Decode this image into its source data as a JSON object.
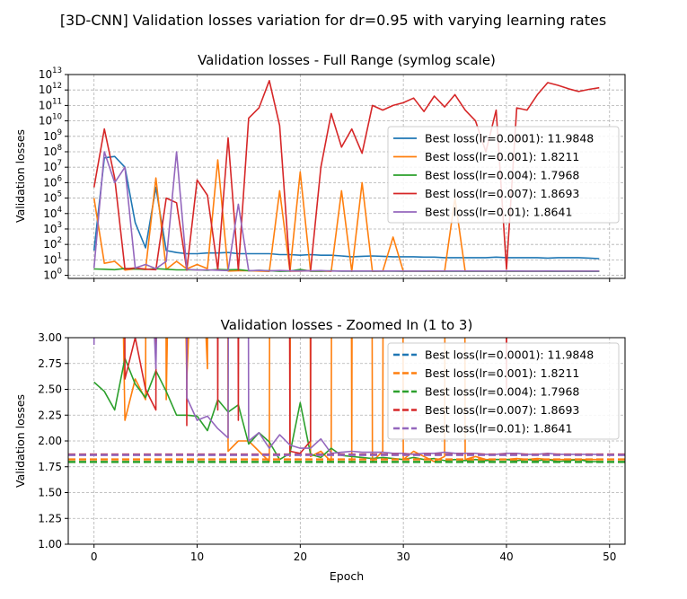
{
  "figure": {
    "suptitle": "[3D-CNN] Validation losses variation for dr=0.95 with varying learning rates"
  },
  "chart_data": [
    {
      "type": "line",
      "title": "Validation losses - Full Range (symlog scale)",
      "xlabel": "",
      "ylabel": "Validation losses",
      "yscale": "symlog",
      "xlim": [
        -2.5,
        51.5
      ],
      "ylim": [
        0.8,
        10000000000000.0
      ],
      "xticks": [
        0,
        10,
        20,
        30,
        40,
        50
      ],
      "yticks": [
        1,
        10,
        100,
        1000,
        10000,
        100000,
        1000000,
        10000000,
        100000000,
        1000000000,
        10000000000,
        100000000000,
        1000000000000,
        10000000000000
      ],
      "ytick_labels": [
        {
          "b": "10",
          "e": "0"
        },
        {
          "b": "10",
          "e": "1"
        },
        {
          "b": "10",
          "e": "2"
        },
        {
          "b": "10",
          "e": "3"
        },
        {
          "b": "10",
          "e": "4"
        },
        {
          "b": "10",
          "e": "5"
        },
        {
          "b": "10",
          "e": "6"
        },
        {
          "b": "10",
          "e": "7"
        },
        {
          "b": "10",
          "e": "8"
        },
        {
          "b": "10",
          "e": "9"
        },
        {
          "b": "10",
          "e": "10"
        },
        {
          "b": "10",
          "e": "11"
        },
        {
          "b": "10",
          "e": "12"
        },
        {
          "b": "10",
          "e": "13"
        }
      ],
      "grid": true,
      "legend": "center-right",
      "x": [
        0,
        1,
        2,
        3,
        4,
        5,
        6,
        7,
        8,
        9,
        10,
        11,
        12,
        13,
        14,
        15,
        16,
        17,
        18,
        19,
        20,
        21,
        22,
        23,
        24,
        25,
        26,
        27,
        28,
        29,
        30,
        31,
        32,
        33,
        34,
        35,
        36,
        37,
        38,
        39,
        40,
        41,
        42,
        43,
        44,
        45,
        46,
        47,
        48,
        49
      ],
      "series": [
        {
          "name": "Best loss(lr=0.0001): 11.9848",
          "color": "#1f77b4",
          "style": "solid",
          "values": [
            40,
            40000000,
            50000000,
            10000000,
            2500,
            60,
            500000,
            40,
            30,
            25,
            25,
            28,
            28,
            30,
            25,
            25,
            25,
            25,
            22,
            22,
            20,
            22,
            20,
            20,
            18,
            16,
            17,
            18,
            17,
            16,
            16,
            16,
            15,
            15,
            14,
            14,
            14,
            14,
            14,
            15,
            14,
            14,
            14,
            14,
            13,
            14,
            14,
            14,
            13,
            12
          ]
        },
        {
          "name": "Best loss(lr=0.001): 1.8211",
          "color": "#ff7f0e",
          "style": "solid",
          "values": [
            100000,
            6,
            8,
            2.2,
            2.6,
            2.4,
            2000000,
            2.4,
            8,
            2.6,
            5,
            2.7,
            30000000,
            1.9,
            2,
            2,
            1.9,
            1.8,
            300000,
            1.85,
            5000000,
            1.85,
            1.9,
            1.8,
            300000,
            1.8,
            1000000,
            1.8,
            1.9,
            300,
            1.82,
            1.9,
            1.85,
            1.8,
            1.85,
            100000,
            1.82,
            1.85,
            1.82,
            1.82,
            1.82,
            1.83,
            1.82,
            1.83,
            1.82,
            1.82,
            1.82,
            1.82,
            1.82,
            1.82
          ]
        },
        {
          "name": "Best loss(lr=0.004): 1.7968",
          "color": "#2ca02c",
          "style": "solid",
          "values": [
            2.57,
            2.48,
            2.3,
            2.8,
            2.55,
            2.42,
            2.68,
            2.48,
            2.25,
            2.25,
            2.24,
            2.1,
            2.4,
            2.28,
            2.35,
            1.97,
            2.08,
            1.99,
            1.82,
            1.88,
            2.37,
            1.87,
            1.84,
            1.93,
            1.86,
            1.85,
            1.84,
            1.83,
            1.84,
            1.83,
            1.82,
            1.84,
            1.82,
            1.83,
            1.81,
            1.82,
            1.81,
            1.82,
            1.81,
            1.82,
            1.82,
            1.81,
            1.82,
            1.81,
            1.82,
            1.8,
            1.81,
            1.82,
            1.8,
            1.8
          ]
        },
        {
          "name": "Best loss(lr=0.007): 1.8693",
          "color": "#d62728",
          "style": "solid",
          "values": [
            500000,
            3000000000,
            2000000,
            2.6,
            3,
            2.5,
            2.3,
            100000,
            50000,
            2.15,
            1500000,
            150000,
            2.3,
            800000000,
            2.2,
            15000000000,
            70000000000,
            4000000000000,
            5000000000,
            1.9,
            1.88,
            2,
            10000000,
            30000000000,
            200000000,
            3000000000,
            80000000,
            100000000000,
            50000000000,
            100000000000,
            150000000000,
            300000000000,
            40000000000,
            400000000000,
            80000000000,
            500000000000,
            50000000000,
            10000000000,
            100000000,
            50000000000,
            2.5,
            70000000000,
            50000000000,
            500000000000,
            3000000000000,
            2000000000000,
            1200000000000,
            800000000000,
            1100000000000,
            1400000000000
          ]
        },
        {
          "name": "Best loss(lr=0.01): 1.8641",
          "color": "#9467bd",
          "style": "solid",
          "values": [
            2.93,
            100000000,
            1000000,
            10000000,
            3,
            5,
            2.7,
            8,
            100000000,
            2.42,
            2.2,
            2.24,
            2.12,
            2.03,
            40000,
            2.0,
            2.08,
            1.93,
            2.06,
            1.96,
            1.93,
            1.93,
            2.02,
            1.88,
            1.89,
            1.9,
            1.89,
            1.89,
            1.89,
            1.88,
            1.88,
            1.87,
            1.88,
            1.88,
            1.89,
            1.88,
            1.88,
            1.88,
            1.87,
            1.87,
            1.88,
            1.88,
            1.87,
            1.87,
            1.88,
            1.87,
            1.87,
            1.87,
            1.87,
            1.87
          ]
        }
      ]
    },
    {
      "type": "line",
      "title": "Validation losses - Zoomed In (1 to 3)",
      "xlabel": "Epoch",
      "ylabel": "Validation losses",
      "xlim": [
        -2.5,
        51.5
      ],
      "ylim": [
        1.0,
        3.0
      ],
      "xticks": [
        0,
        10,
        20,
        30,
        40,
        50
      ],
      "yticks": [
        1.0,
        1.25,
        1.5,
        1.75,
        2.0,
        2.25,
        2.5,
        2.75,
        3.0
      ],
      "ytick_labels": [
        "1.00",
        "1.25",
        "1.50",
        "1.75",
        "2.00",
        "2.25",
        "2.50",
        "2.75",
        "3.00"
      ],
      "grid": true,
      "legend": "top-right",
      "note_series": "same series as the full-range plot; dashed horizontal lines mark each series' best loss",
      "best_lines": [
        {
          "name": "Best loss(lr=0.0001): 11.9848",
          "color": "#1f77b4",
          "value": 11.9848
        },
        {
          "name": "Best loss(lr=0.001): 1.8211",
          "color": "#ff7f0e",
          "value": 1.8211
        },
        {
          "name": "Best loss(lr=0.004): 1.7968",
          "color": "#2ca02c",
          "value": 1.7968
        },
        {
          "name": "Best loss(lr=0.007): 1.8693",
          "color": "#d62728",
          "value": 1.8693
        },
        {
          "name": "Best loss(lr=0.01): 1.8641",
          "color": "#9467bd",
          "value": 1.8641
        }
      ]
    }
  ]
}
